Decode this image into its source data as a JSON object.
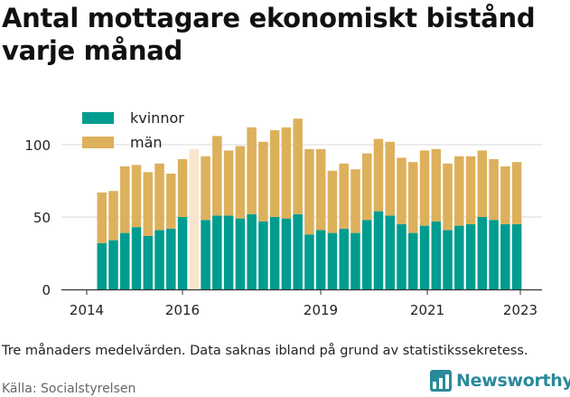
{
  "title": "Antal mottagare ekonomiskt bistånd varje månad",
  "note": "Tre månaders medelvärden. Data saknas ibland på grund av statistikssekretess.",
  "source": "Källa: Socialstyrelsen",
  "brand": {
    "name": "Newsworthy",
    "icon": "newsworthy-logo-icon",
    "color": "#2a8a9a"
  },
  "chart_data": {
    "type": "bar",
    "stacked": true,
    "title": "Antal mottagare ekonomiskt bistånd varje månad",
    "xlabel": "",
    "ylabel": "",
    "ylim": [
      0,
      125
    ],
    "yticks": [
      0,
      50,
      100
    ],
    "ytick_labels": [
      "0",
      "50",
      "100"
    ],
    "xticks": [
      {
        "label": "2014",
        "index": 0
      },
      {
        "label": "2016",
        "index": 8
      },
      {
        "label": "2019",
        "index": 20
      },
      {
        "label": "2021",
        "index": 28
      },
      {
        "label": "2023",
        "index": 36
      }
    ],
    "grid": "horizontal",
    "legend": "top-left",
    "colors": {
      "kvinnor": "#009c8f",
      "man": "#ddb05c",
      "missing": "#f7e6cc"
    },
    "series": [
      {
        "name": "kvinnor",
        "values": [
          32,
          34,
          39,
          43,
          37,
          41,
          42,
          50,
          48,
          51,
          51,
          49,
          52,
          47,
          50,
          49,
          52,
          38,
          41,
          39,
          42,
          39,
          48,
          54,
          51,
          45,
          39,
          44,
          47,
          41,
          44,
          45,
          50,
          48,
          45,
          45
        ]
      },
      {
        "name": "män",
        "values": [
          35,
          34,
          46,
          43,
          44,
          46,
          38,
          40,
          44,
          55,
          45,
          50,
          60,
          55,
          60,
          63,
          66,
          59,
          56,
          43,
          45,
          44,
          46,
          50,
          51,
          46,
          49,
          52,
          50,
          46,
          48,
          47,
          46,
          42,
          40,
          43
        ]
      }
    ],
    "missing_bars": [
      {
        "index": 8,
        "total": 97
      }
    ]
  }
}
